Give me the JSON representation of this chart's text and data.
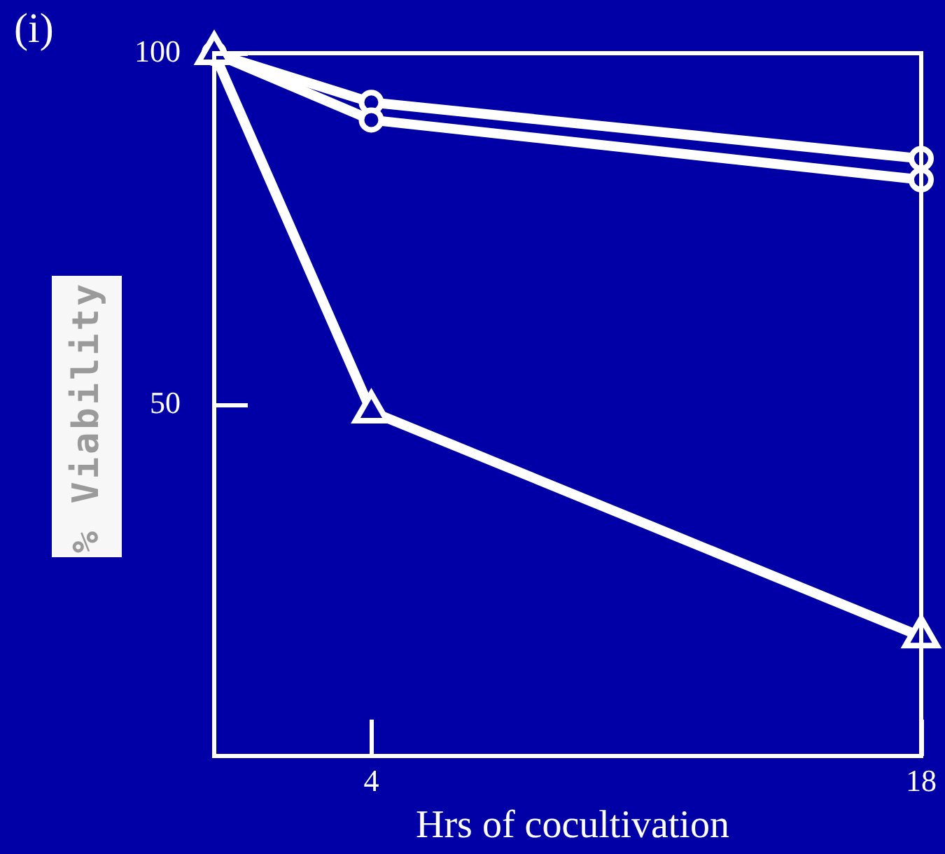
{
  "chart_data": {
    "type": "line",
    "title": "(i)",
    "xlabel": "Hrs of cocultivation",
    "ylabel": "% Viability",
    "x": [
      0,
      4,
      18
    ],
    "xlim": [
      0,
      18
    ],
    "xticks": [
      4,
      18
    ],
    "ylim": [
      0,
      100
    ],
    "yticks": [
      50,
      100
    ],
    "grid": false,
    "legend": false,
    "line_style": "solid",
    "series": [
      {
        "color": "#ffffff",
        "marker": "circle",
        "values": [
          100,
          93,
          85
        ]
      },
      {
        "color": "#ffffff",
        "marker": "circle",
        "values": [
          100,
          90.5,
          82
        ]
      },
      {
        "color": "#ffffff",
        "marker": "triangle",
        "values": [
          100,
          49,
          17
        ]
      }
    ]
  }
}
